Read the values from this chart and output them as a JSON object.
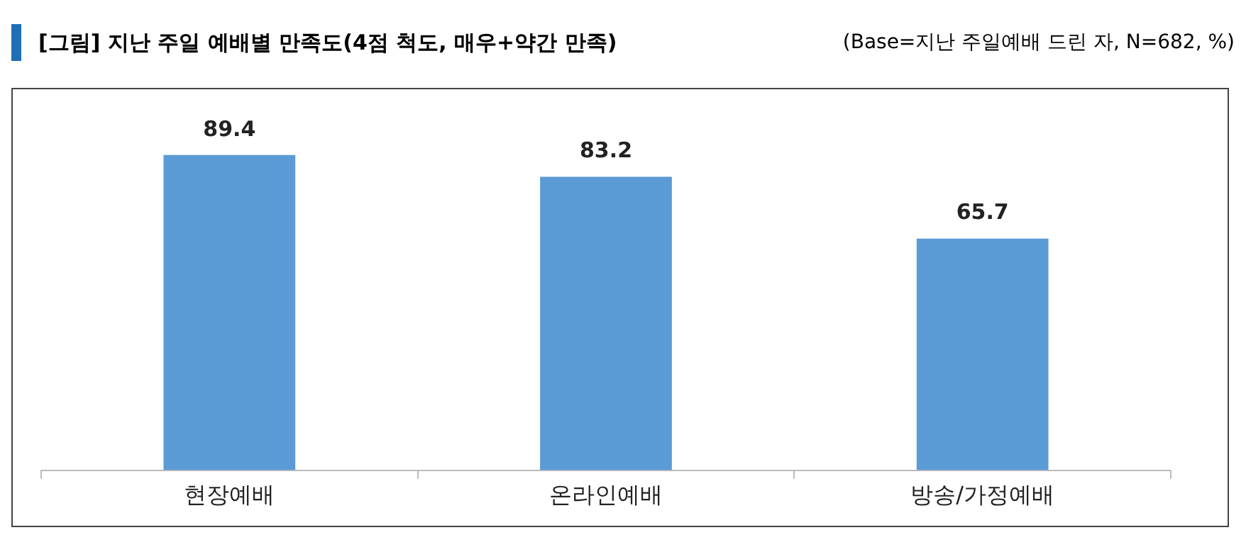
{
  "chart_data": {
    "type": "bar",
    "title": "[그림] 지난 주일 예배별 만족도(4점 척도, 매우+약간 만족)",
    "subtitle": "(Base=지난 주일예배 드린 자, N=682, %)",
    "categories": [
      "현장예배",
      "온라인예배",
      "방송/가정예배"
    ],
    "values": [
      89.4,
      83.2,
      65.7
    ],
    "color": "#5b9bd5",
    "data_labels": true,
    "grid": false,
    "legend": false
  }
}
